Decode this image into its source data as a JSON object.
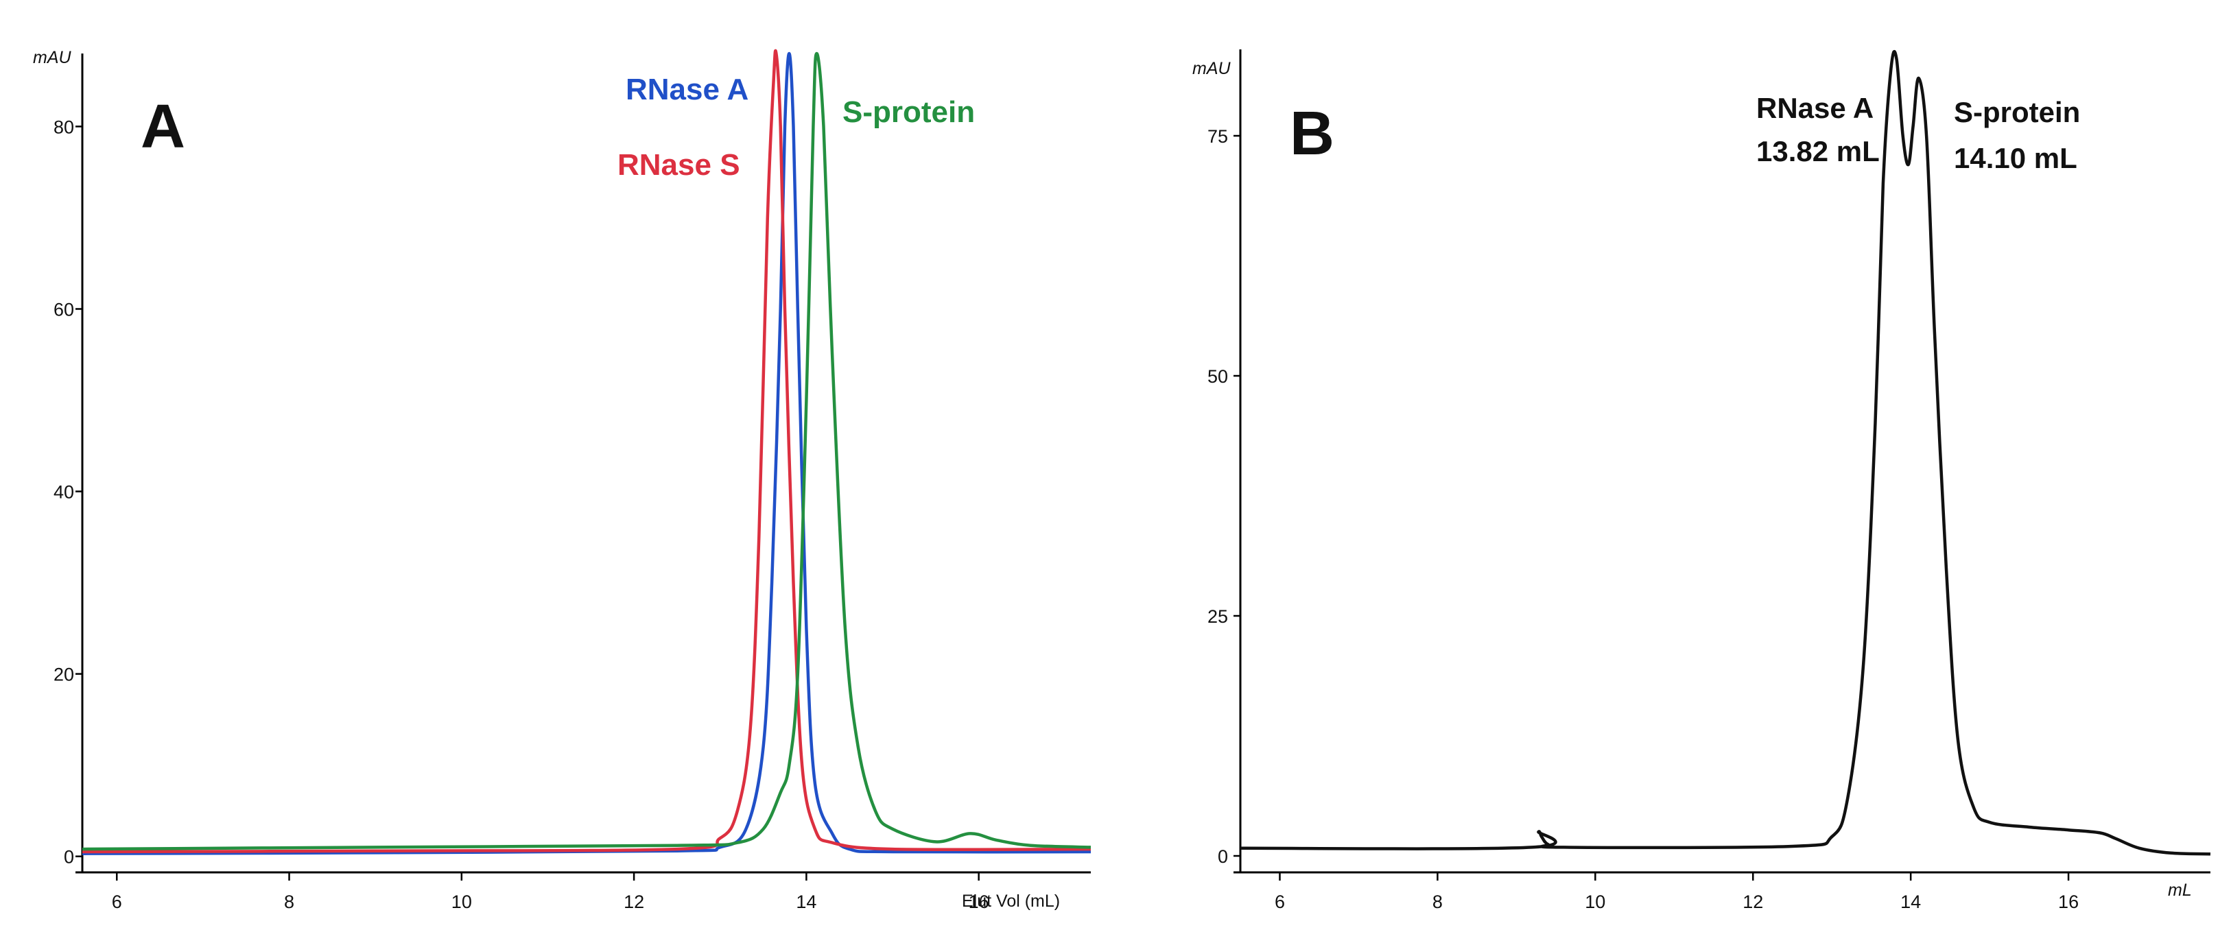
{
  "chart_data": [
    {
      "type": "line",
      "panel_label": "A",
      "ylabel": "mAU",
      "xlabel": "Elut Vol (mL)",
      "xlim": [
        5.6,
        17.3
      ],
      "ylim": [
        -1,
        88
      ],
      "xticks": [
        6,
        8,
        10,
        12,
        14,
        16
      ],
      "yticks": [
        0,
        20,
        40,
        60,
        80
      ],
      "grid": false,
      "series": [
        {
          "name": "RNase A",
          "color": "#2050c8",
          "x": [
            5.6,
            9.0,
            12.5,
            13.0,
            13.3,
            13.5,
            13.6,
            13.7,
            13.75,
            13.8,
            13.85,
            13.9,
            14.0,
            14.1,
            14.3,
            14.5,
            15.0,
            17.3
          ],
          "y": [
            0.3,
            0.4,
            0.6,
            1.0,
            3.0,
            12.0,
            30.0,
            60.0,
            80.0,
            88.0,
            80.0,
            60.0,
            25.0,
            8.0,
            2.5,
            0.8,
            0.5,
            0.5
          ]
        },
        {
          "name": "RNase S",
          "color": "#dc3040",
          "x": [
            5.6,
            9.0,
            12.5,
            13.0,
            13.2,
            13.35,
            13.45,
            13.55,
            13.62,
            13.65,
            13.7,
            13.75,
            13.85,
            13.95,
            14.1,
            14.3,
            15.0,
            17.3
          ],
          "y": [
            0.5,
            0.6,
            0.8,
            2.0,
            5.0,
            14.0,
            35.0,
            70.0,
            85.0,
            88.0,
            80.0,
            60.0,
            30.0,
            10.0,
            3.0,
            1.5,
            0.8,
            0.8
          ]
        },
        {
          "name": "S-protein",
          "color": "#249040",
          "x": [
            5.6,
            9.0,
            12.5,
            13.2,
            13.5,
            13.7,
            13.8,
            13.9,
            14.0,
            14.08,
            14.12,
            14.2,
            14.3,
            14.45,
            14.6,
            14.8,
            15.0,
            15.5,
            15.9,
            16.2,
            16.6,
            17.3
          ],
          "y": [
            0.8,
            1.0,
            1.2,
            1.5,
            3.0,
            7.0,
            10.0,
            20.0,
            50.0,
            80.0,
            88.0,
            80.0,
            55.0,
            25.0,
            12.0,
            5.0,
            3.0,
            1.6,
            2.5,
            1.8,
            1.2,
            1.0
          ]
        }
      ],
      "annotations": [
        {
          "text": "RNase A",
          "color": "#2050c8"
        },
        {
          "text": "RNase S",
          "color": "#dc3040"
        },
        {
          "text": "S-protein",
          "color": "#249040"
        }
      ]
    },
    {
      "type": "line",
      "panel_label": "B",
      "ylabel": "mAU",
      "xlabel": "mL",
      "xlim": [
        5.5,
        17.8
      ],
      "ylim": [
        -1,
        84
      ],
      "xticks": [
        6,
        8,
        10,
        12,
        14,
        16
      ],
      "yticks": [
        0,
        25,
        50,
        75
      ],
      "grid": false,
      "series": [
        {
          "name": "",
          "color": "#111111",
          "x": [
            5.5,
            9.2,
            9.28,
            9.32,
            9.4,
            9.6,
            12.5,
            13.0,
            13.2,
            13.4,
            13.55,
            13.65,
            13.75,
            13.82,
            13.9,
            13.97,
            14.03,
            14.1,
            14.2,
            14.3,
            14.45,
            14.6,
            14.8,
            15.0,
            15.5,
            16.0,
            16.4,
            16.6,
            16.9,
            17.3,
            17.8
          ],
          "y": [
            0.8,
            0.9,
            2.5,
            2.0,
            1.2,
            0.9,
            1.0,
            2.0,
            6.0,
            20.0,
            45.0,
            70.0,
            82.0,
            83.0,
            75.0,
            72.0,
            76.0,
            81.0,
            75.0,
            55.0,
            30.0,
            12.0,
            5.0,
            3.5,
            3.0,
            2.7,
            2.4,
            1.8,
            0.8,
            0.3,
            0.2
          ]
        }
      ],
      "annotations": [
        {
          "text": "RNase A",
          "color": "#111111"
        },
        {
          "text": "13.82 mL",
          "color": "#111111"
        },
        {
          "text": "S-protein",
          "color": "#111111"
        },
        {
          "text": "14.10 mL",
          "color": "#111111"
        }
      ]
    }
  ]
}
